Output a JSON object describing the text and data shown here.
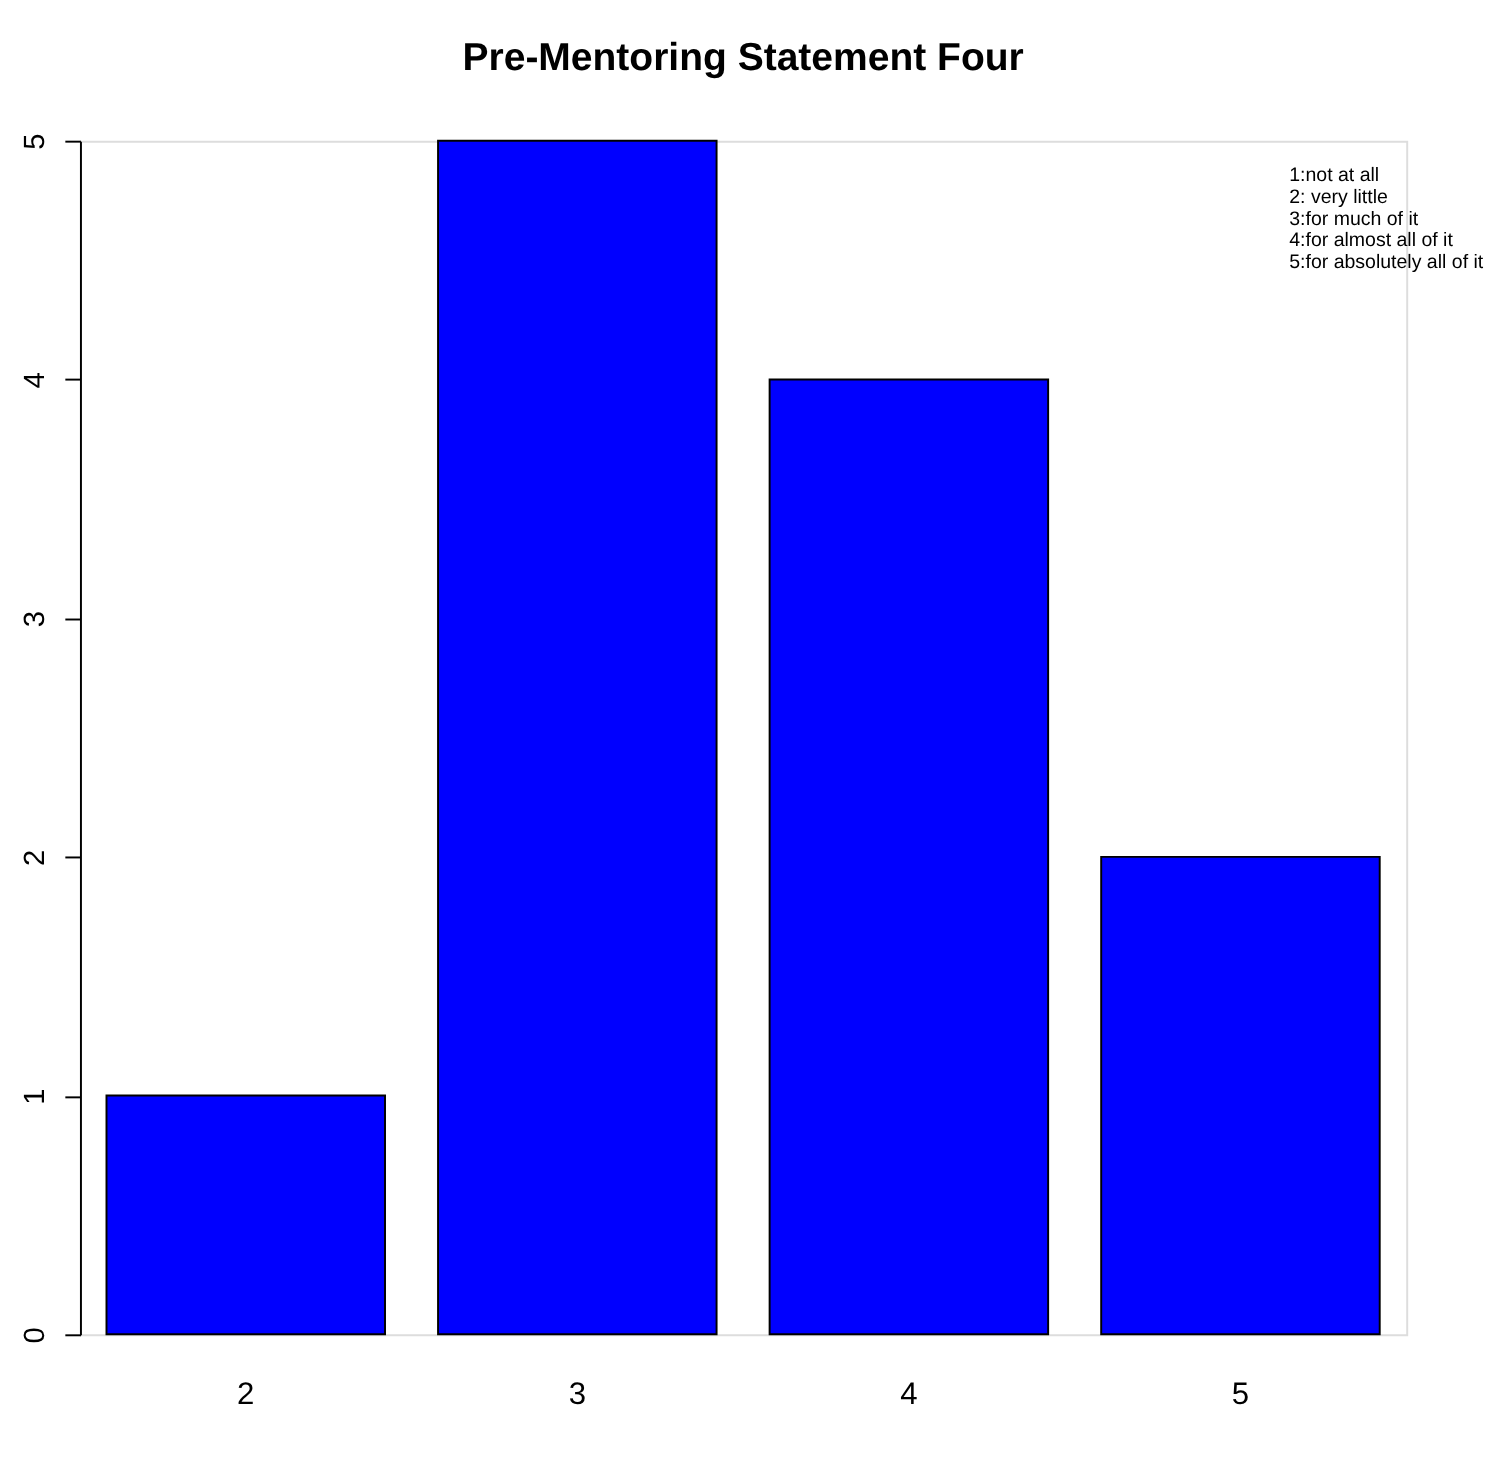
{
  "chart_data": {
    "type": "bar",
    "title": "Pre-Mentoring Statement Four",
    "categories": [
      "2",
      "3",
      "4",
      "5"
    ],
    "values": [
      1,
      5,
      4,
      2
    ],
    "color": "#0000ff",
    "ylim": [
      0,
      5
    ],
    "yticks": [
      0,
      1,
      2,
      3,
      4,
      5
    ],
    "grid": false,
    "annotations": [
      "1:not at all",
      "2: very little",
      "3:for much of it",
      "4:for almost all of it",
      "5:for absolutely all of it"
    ]
  }
}
